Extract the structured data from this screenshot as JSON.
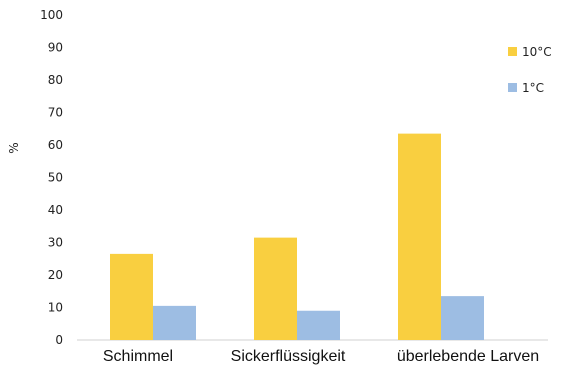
{
  "chart_data": {
    "type": "bar",
    "categories": [
      "Schimmel",
      "Sickerflüssigkeit",
      "überlebende Larven"
    ],
    "series": [
      {
        "name": "10°C",
        "values": [
          26.5,
          31.5,
          63.5
        ],
        "color": "#F9CF40"
      },
      {
        "name": "1°C",
        "values": [
          10.5,
          9,
          13.5
        ],
        "color": "#9DBDE3"
      }
    ],
    "ylabel": "%",
    "ylim": [
      0,
      100
    ],
    "yticks": [
      0,
      10,
      20,
      30,
      40,
      50,
      60,
      70,
      80,
      90,
      100
    ],
    "grid": false,
    "legend": "top-right"
  }
}
